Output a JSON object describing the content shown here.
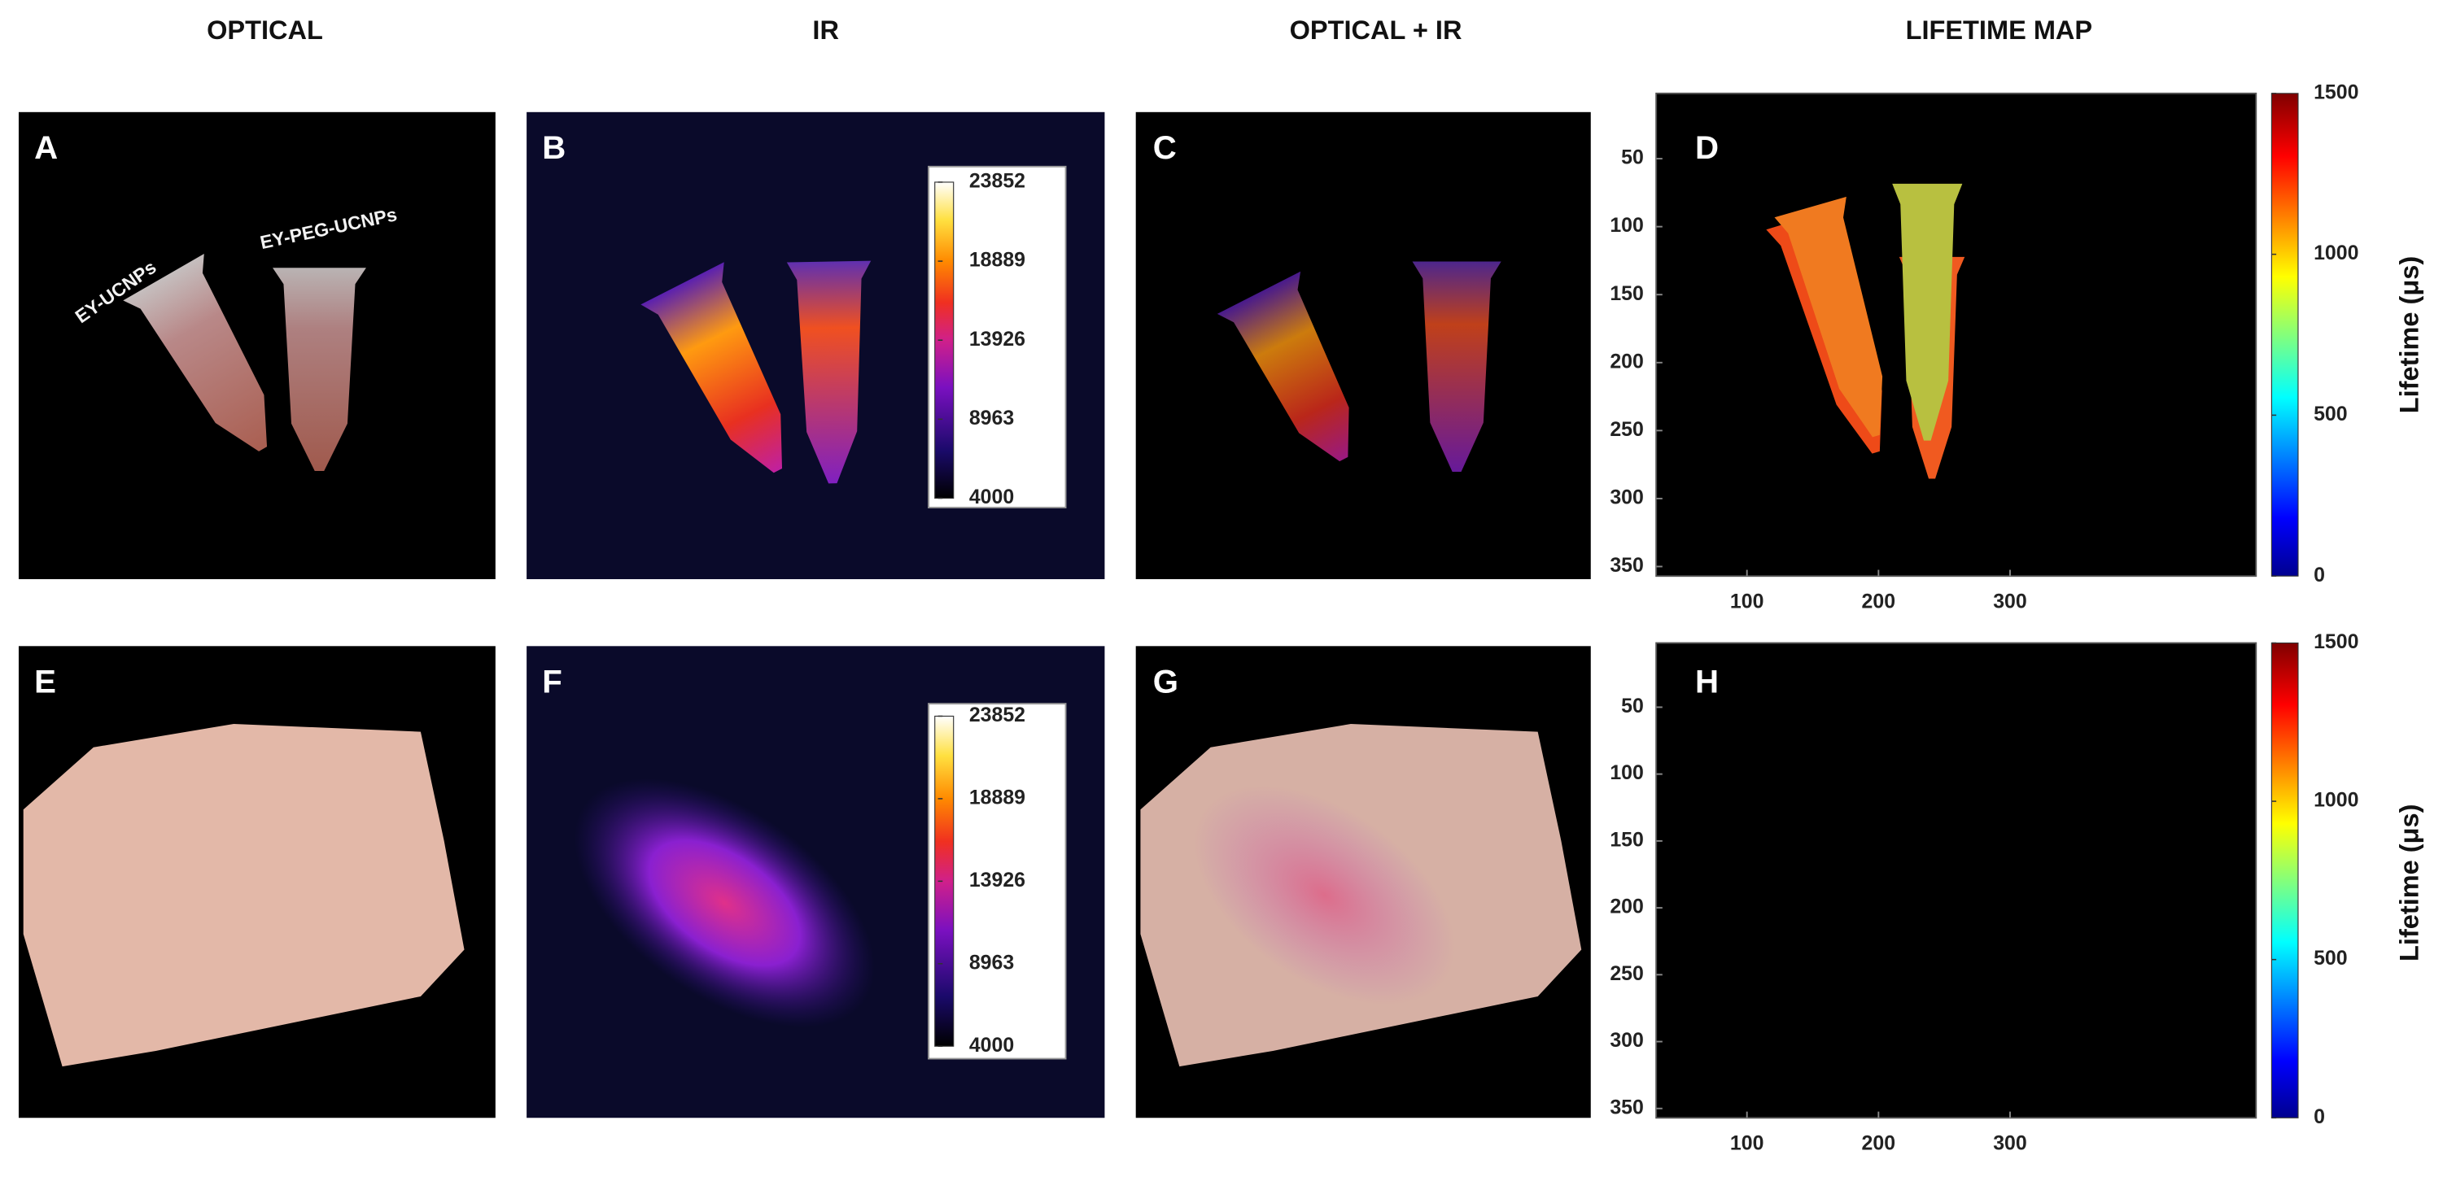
{
  "headers": [
    "OPTICAL",
    "IR",
    "OPTICAL + IR",
    "LIFETIME MAP"
  ],
  "panels": [
    {
      "label": "A",
      "annotations": [
        "EY-UCNPs",
        "EY-PEG-UCNPs"
      ]
    },
    {
      "label": "B",
      "colorbar_ticks": [
        4000,
        8963,
        13926,
        18889,
        23852
      ]
    },
    {
      "label": "C"
    },
    {
      "label": "D",
      "colorbar_ticks": [
        0,
        500,
        1000,
        1500
      ],
      "colorbar_label": "Lifetime (μs)",
      "xlim": [
        31,
        487
      ],
      "xticks": [
        100,
        200,
        300
      ],
      "ylim": [
        2,
        357
      ],
      "yticks": [
        50,
        100,
        150,
        200,
        250,
        300,
        350
      ]
    },
    {
      "label": "E"
    },
    {
      "label": "F",
      "colorbar_ticks": [
        4000,
        8963,
        13926,
        18889,
        23852
      ]
    },
    {
      "label": "G"
    },
    {
      "label": "H",
      "colorbar_ticks": [
        0,
        500,
        1000,
        1500
      ],
      "colorbar_label": "Lifetime (μs)",
      "xlim": [
        31,
        487
      ],
      "xticks": [
        100,
        200,
        300
      ],
      "ylim": [
        2,
        357
      ],
      "yticks": [
        50,
        100,
        150,
        200,
        250,
        300,
        350
      ]
    }
  ]
}
